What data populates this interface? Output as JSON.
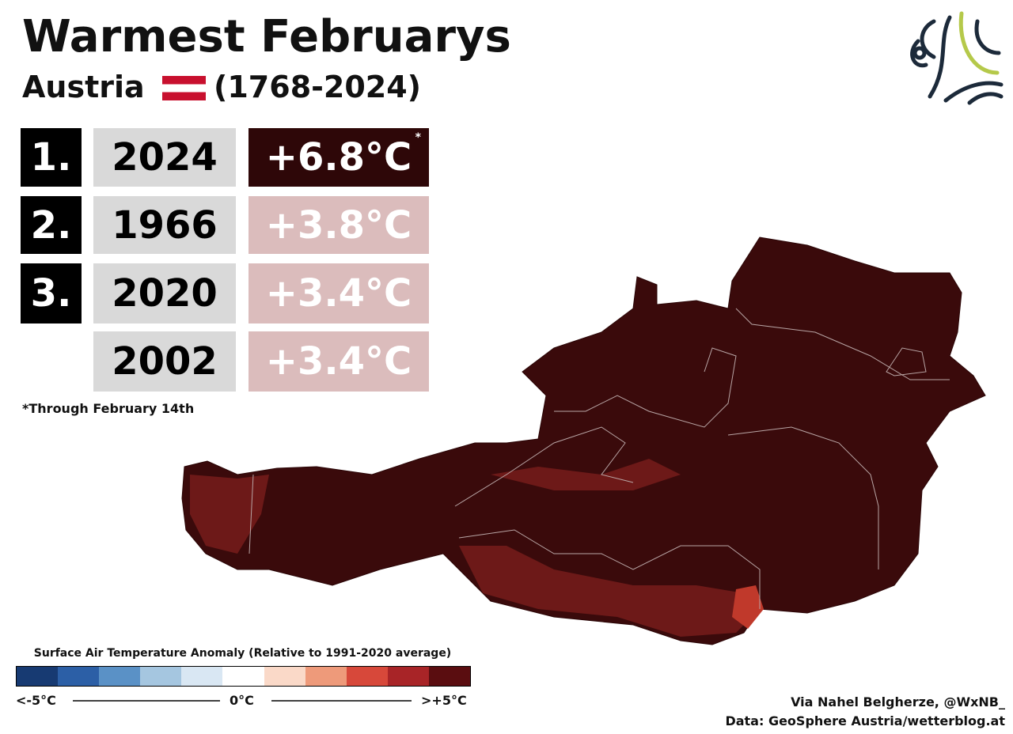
{
  "header": {
    "title": "Warmest Februarys",
    "country": "Austria",
    "period": "(1768-2024)"
  },
  "ranking": {
    "rows": [
      {
        "rank": "1.",
        "year": 2024,
        "anomaly": "+6.8°C",
        "mark": "*"
      },
      {
        "rank": "2.",
        "year": 1966,
        "anomaly": "+3.8°C"
      },
      {
        "rank": "3.",
        "year": 2020,
        "anomaly": "+3.4°C"
      },
      {
        "year": 2002,
        "anomaly": "+3.4°C"
      }
    ],
    "footnote": "*Through February 14th"
  },
  "legend": {
    "title": "Surface Air Temperature Anomaly (Relative to 1991-2020 average)",
    "colors": [
      "#173a72",
      "#2c5fa6",
      "#5a91c6",
      "#a5c6e0",
      "#d9e7f3",
      "#ffffff",
      "#fad9c8",
      "#ee9a7a",
      "#d7483a",
      "#a82427",
      "#5a0d10"
    ],
    "low": "<-5°C",
    "mid": "0°C",
    "high": ">+5°C"
  },
  "credits": {
    "author": "Via Nahel Belgherze, @WxNB_",
    "source": "Data: GeoSphere Austria/wetterblog.at"
  }
}
